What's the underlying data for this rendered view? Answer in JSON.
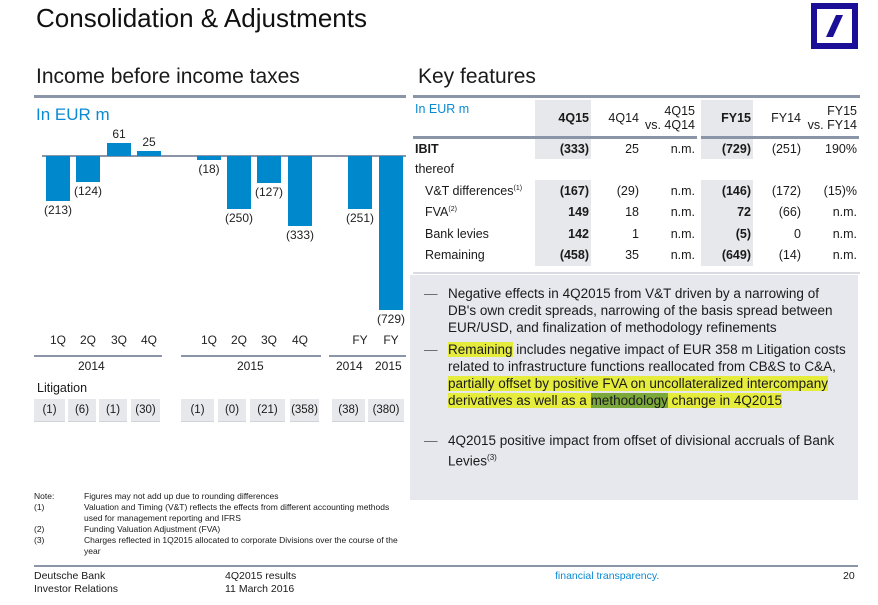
{
  "title": "Consolidation & Adjustments",
  "logo": {
    "name": "deutsche-bank-logo",
    "color": "#1a0f96"
  },
  "left": {
    "heading": "Income before income taxes",
    "unit": "In EUR m",
    "year_groups": [
      "2014",
      "2015",
      "2014",
      "2015"
    ],
    "litigation_label": "Litigation",
    "litigation": [
      "(1)",
      "(6)",
      "(1)",
      "(30)",
      "(1)",
      "(0)",
      "(21)",
      "(358)",
      "(38)",
      "(380)"
    ]
  },
  "chart_data": {
    "type": "bar",
    "title": "",
    "ylabel": "In EUR m",
    "categories": [
      "1Q 2014",
      "2Q 2014",
      "3Q 2014",
      "4Q 2014",
      "1Q 2015",
      "2Q 2015",
      "3Q 2015",
      "4Q 2015",
      "FY 2014",
      "FY 2015"
    ],
    "tick_labels": [
      "1Q",
      "2Q",
      "3Q",
      "4Q",
      "1Q",
      "2Q",
      "3Q",
      "4Q",
      "FY",
      "FY"
    ],
    "values": [
      -213,
      -124,
      61,
      25,
      -18,
      -250,
      -127,
      -333,
      -251,
      -729
    ],
    "data_labels": [
      "(213)",
      "(124)",
      "61",
      "25",
      "(18)",
      "(250)",
      "(127)",
      "(333)",
      "(251)",
      "(729)"
    ],
    "color": "#0088cc",
    "grid": false
  },
  "right": {
    "heading": "Key features",
    "table": {
      "unit": "In EUR m",
      "columns": [
        "4Q15",
        "4Q14",
        "4Q15 vs. 4Q14",
        "FY15",
        "FY14",
        "FY15 vs. FY14"
      ],
      "col_lines": [
        [
          "4Q15"
        ],
        [
          "4Q14"
        ],
        [
          "4Q15",
          "vs. 4Q14"
        ],
        [
          "FY15"
        ],
        [
          "FY14"
        ],
        [
          "FY15",
          "vs. FY14"
        ]
      ],
      "rows": [
        {
          "label": "IBIT",
          "sup": "",
          "values": [
            "(333)",
            "25",
            "n.m.",
            "(729)",
            "(251)",
            "190%"
          ]
        },
        {
          "label": "thereof",
          "sup": "",
          "values": [
            "",
            "",
            "",
            "",
            "",
            ""
          ]
        },
        {
          "label": "V&T differences",
          "sup": "(1)",
          "values": [
            "(167)",
            "(29)",
            "n.m.",
            "(146)",
            "(172)",
            "(15)%"
          ]
        },
        {
          "label": "FVA",
          "sup": "(2)",
          "values": [
            "149",
            "18",
            "n.m.",
            "72",
            "(66)",
            "n.m."
          ]
        },
        {
          "label": "Bank levies",
          "sup": "",
          "values": [
            "142",
            "1",
            "n.m.",
            "(5)",
            "0",
            "n.m."
          ]
        },
        {
          "label": "Remaining",
          "sup": "",
          "values": [
            "(458)",
            "35",
            "n.m.",
            "(649)",
            "(14)",
            "n.m."
          ]
        }
      ]
    },
    "bullets": [
      {
        "text": "Negative effects in 4Q2015 from V&T driven by a narrowing of DB's own credit spreads, narrowing of the basis spread between EUR/USD, and finalization of methodology refinements"
      },
      {
        "parts": [
          "Remaining",
          " includes negative impact of EUR 358 m Litigation costs related to infrastructure functions reallocated from CB&S to C&A, ",
          "partially offset by positive FVA on uncollateralized intercompany derivatives as well as a ",
          "methodology",
          " change in 4Q2015"
        ]
      },
      {
        "text": "4Q2015 positive impact from offset of divisional accruals of Bank Levies",
        "sup": "(3)"
      }
    ],
    "highlight_colors": {
      "yellow": "#e5ec3c",
      "green": "#7aa83a"
    }
  },
  "notes": [
    {
      "key": "Note:",
      "text": "Figures may not add up due to rounding differences"
    },
    {
      "key": "(1)",
      "text": "Valuation and Timing (V&T) reflects the effects from different accounting methods used for management reporting and IFRS"
    },
    {
      "key": "(2)",
      "text": "Funding Valuation Adjustment (FVA)"
    },
    {
      "key": "(3)",
      "text": "Charges reflected in 1Q2015 allocated to corporate Divisions over the course of the year"
    }
  ],
  "footer": {
    "company": "Deutsche Bank",
    "dept": "Investor Relations",
    "report": "4Q2015 results",
    "date": "11 March 2016",
    "tagline": "financial transparency.",
    "page": "20"
  }
}
